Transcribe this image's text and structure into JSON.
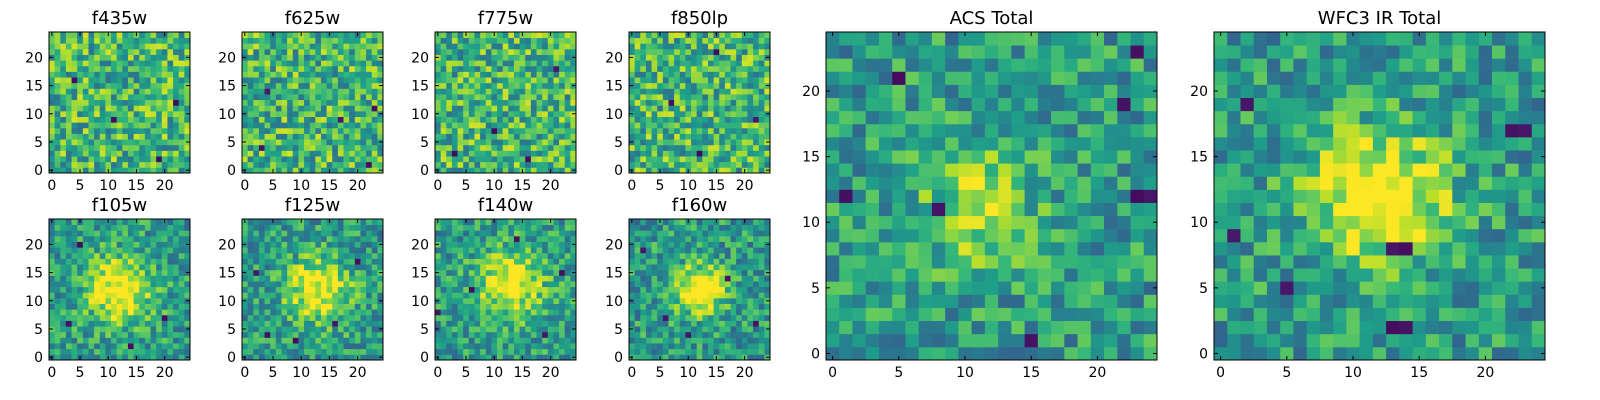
{
  "chart_data": [
    {
      "type": "heatmap",
      "title": "f435w",
      "colormap": "viridis",
      "grid": false,
      "n": 25,
      "xlim": [
        0,
        24
      ],
      "ylim": [
        0,
        24
      ],
      "xticks": [
        0,
        5,
        10,
        15,
        20
      ],
      "yticks": [
        0,
        5,
        10,
        15,
        20
      ],
      "xticklabels": [
        "0",
        "5",
        "10",
        "15",
        "20"
      ],
      "yticklabels": [
        "0",
        "5",
        "10",
        "15",
        "20"
      ],
      "peak": null,
      "low_cells": [
        [
          11,
          9
        ],
        [
          4,
          16
        ],
        [
          19,
          2
        ],
        [
          22,
          12
        ]
      ],
      "seed": 11
    },
    {
      "type": "heatmap",
      "title": "f625w",
      "colormap": "viridis",
      "grid": false,
      "n": 25,
      "xlim": [
        0,
        24
      ],
      "ylim": [
        0,
        24
      ],
      "xticks": [
        0,
        5,
        10,
        15,
        20
      ],
      "yticks": [
        0,
        5,
        10,
        15,
        20
      ],
      "xticklabels": [
        "0",
        "5",
        "10",
        "15",
        "20"
      ],
      "yticklabels": [
        "0",
        "5",
        "10",
        "15",
        "20"
      ],
      "peak": null,
      "low_cells": [
        [
          4,
          14
        ],
        [
          23,
          11
        ],
        [
          3,
          4
        ],
        [
          17,
          9
        ],
        [
          22,
          1
        ]
      ],
      "seed": 23
    },
    {
      "type": "heatmap",
      "title": "f775w",
      "colormap": "viridis",
      "grid": false,
      "n": 25,
      "xlim": [
        0,
        24
      ],
      "ylim": [
        0,
        24
      ],
      "xticks": [
        0,
        5,
        10,
        15,
        20
      ],
      "yticks": [
        0,
        5,
        10,
        15,
        20
      ],
      "xticklabels": [
        "0",
        "5",
        "10",
        "15",
        "20"
      ],
      "yticklabels": [
        "0",
        "5",
        "10",
        "15",
        "20"
      ],
      "peak": null,
      "low_cells": [
        [
          10,
          7
        ],
        [
          3,
          3
        ],
        [
          16,
          2
        ],
        [
          21,
          18
        ]
      ],
      "seed": 37
    },
    {
      "type": "heatmap",
      "title": "f850lp",
      "colormap": "viridis",
      "grid": false,
      "n": 25,
      "xlim": [
        0,
        24
      ],
      "ylim": [
        0,
        24
      ],
      "xticks": [
        0,
        5,
        10,
        15,
        20
      ],
      "yticks": [
        0,
        5,
        10,
        15,
        20
      ],
      "xticklabels": [
        "0",
        "5",
        "10",
        "15",
        "20"
      ],
      "yticklabels": [
        "0",
        "5",
        "10",
        "15",
        "20"
      ],
      "peak": null,
      "low_cells": [
        [
          7,
          12
        ],
        [
          15,
          21
        ],
        [
          12,
          3
        ],
        [
          22,
          9
        ]
      ],
      "seed": 41
    },
    {
      "type": "heatmap",
      "title": "f105w",
      "colormap": "viridis",
      "grid": false,
      "n": 25,
      "xlim": [
        0,
        24
      ],
      "ylim": [
        0,
        24
      ],
      "xticks": [
        0,
        5,
        10,
        15,
        20
      ],
      "yticks": [
        0,
        5,
        10,
        15,
        20
      ],
      "xticklabels": [
        "0",
        "5",
        "10",
        "15",
        "20"
      ],
      "yticklabels": [
        "0",
        "5",
        "10",
        "15",
        "20"
      ],
      "peak": [
        12,
        12,
        0.55,
        4
      ],
      "low_cells": [
        [
          5,
          20
        ],
        [
          14,
          2
        ],
        [
          20,
          7
        ],
        [
          3,
          6
        ]
      ],
      "seed": 53
    },
    {
      "type": "heatmap",
      "title": "f125w",
      "colormap": "viridis",
      "grid": false,
      "n": 25,
      "xlim": [
        0,
        24
      ],
      "ylim": [
        0,
        24
      ],
      "xticks": [
        0,
        5,
        10,
        15,
        20
      ],
      "yticks": [
        0,
        5,
        10,
        15,
        20
      ],
      "xticklabels": [
        "0",
        "5",
        "10",
        "15",
        "20"
      ],
      "yticklabels": [
        "0",
        "5",
        "10",
        "15",
        "20"
      ],
      "peak": [
        13,
        12,
        0.5,
        4
      ],
      "low_cells": [
        [
          4,
          4
        ],
        [
          9,
          3
        ],
        [
          16,
          6
        ],
        [
          20,
          17
        ],
        [
          2,
          15
        ]
      ],
      "seed": 67
    },
    {
      "type": "heatmap",
      "title": "f140w",
      "colormap": "viridis",
      "grid": false,
      "n": 25,
      "xlim": [
        0,
        24
      ],
      "ylim": [
        0,
        24
      ],
      "xticks": [
        0,
        5,
        10,
        15,
        20
      ],
      "yticks": [
        0,
        5,
        10,
        15,
        20
      ],
      "xticklabels": [
        "0",
        "5",
        "10",
        "15",
        "20"
      ],
      "yticklabels": [
        "0",
        "5",
        "10",
        "15",
        "20"
      ],
      "peak": [
        13,
        13,
        0.5,
        4
      ],
      "low_cells": [
        [
          0,
          8
        ],
        [
          6,
          12
        ],
        [
          19,
          4
        ],
        [
          22,
          15
        ],
        [
          14,
          21
        ]
      ],
      "seed": 79
    },
    {
      "type": "heatmap",
      "title": "f160w",
      "colormap": "viridis",
      "grid": false,
      "n": 25,
      "xlim": [
        0,
        24
      ],
      "ylim": [
        0,
        24
      ],
      "xticks": [
        0,
        5,
        10,
        15,
        20
      ],
      "yticks": [
        0,
        5,
        10,
        15,
        20
      ],
      "xticklabels": [
        "0",
        "5",
        "10",
        "15",
        "20"
      ],
      "yticklabels": [
        "0",
        "5",
        "10",
        "15",
        "20"
      ],
      "peak": [
        12,
        12,
        0.6,
        3
      ],
      "low_cells": [
        [
          2,
          19
        ],
        [
          10,
          4
        ],
        [
          17,
          14
        ],
        [
          22,
          6
        ],
        [
          6,
          7
        ]
      ],
      "seed": 83
    },
    {
      "type": "heatmap",
      "title": "ACS Total",
      "colormap": "viridis",
      "grid": false,
      "n": 25,
      "xlim": [
        0,
        24
      ],
      "ylim": [
        0,
        24
      ],
      "xticks": [
        0,
        5,
        10,
        15,
        20
      ],
      "yticks": [
        0,
        5,
        10,
        15,
        20,
        25
      ],
      "xticklabels": [
        "0",
        "5",
        "10",
        "15",
        "20"
      ],
      "yticklabels": [
        "0",
        "5",
        "10",
        "15",
        "20",
        ""
      ],
      "peak": [
        11,
        11,
        0.35,
        3
      ],
      "low_cells": [
        [
          5,
          21
        ],
        [
          22,
          19
        ],
        [
          23,
          12
        ],
        [
          24,
          12
        ],
        [
          1,
          12
        ],
        [
          8,
          11
        ],
        [
          15,
          1
        ],
        [
          23,
          23
        ]
      ],
      "seed": 97
    },
    {
      "type": "heatmap",
      "title": "WFC3 IR Total",
      "colormap": "viridis",
      "grid": false,
      "n": 25,
      "xlim": [
        0,
        24
      ],
      "ylim": [
        0,
        24
      ],
      "xticks": [
        0,
        5,
        10,
        15,
        20
      ],
      "yticks": [
        0,
        5,
        10,
        15,
        20
      ],
      "xticklabels": [
        "0",
        "5",
        "10",
        "15",
        "20"
      ],
      "yticklabels": [
        "0",
        "5",
        "10",
        "15",
        "20"
      ],
      "peak": [
        12,
        12,
        0.6,
        3.5
      ],
      "low_cells": [
        [
          2,
          19
        ],
        [
          22,
          17
        ],
        [
          23,
          17
        ],
        [
          13,
          8
        ],
        [
          14,
          8
        ],
        [
          1,
          9
        ],
        [
          13,
          2
        ],
        [
          14,
          2
        ],
        [
          5,
          5
        ]
      ],
      "seed": 101
    }
  ]
}
